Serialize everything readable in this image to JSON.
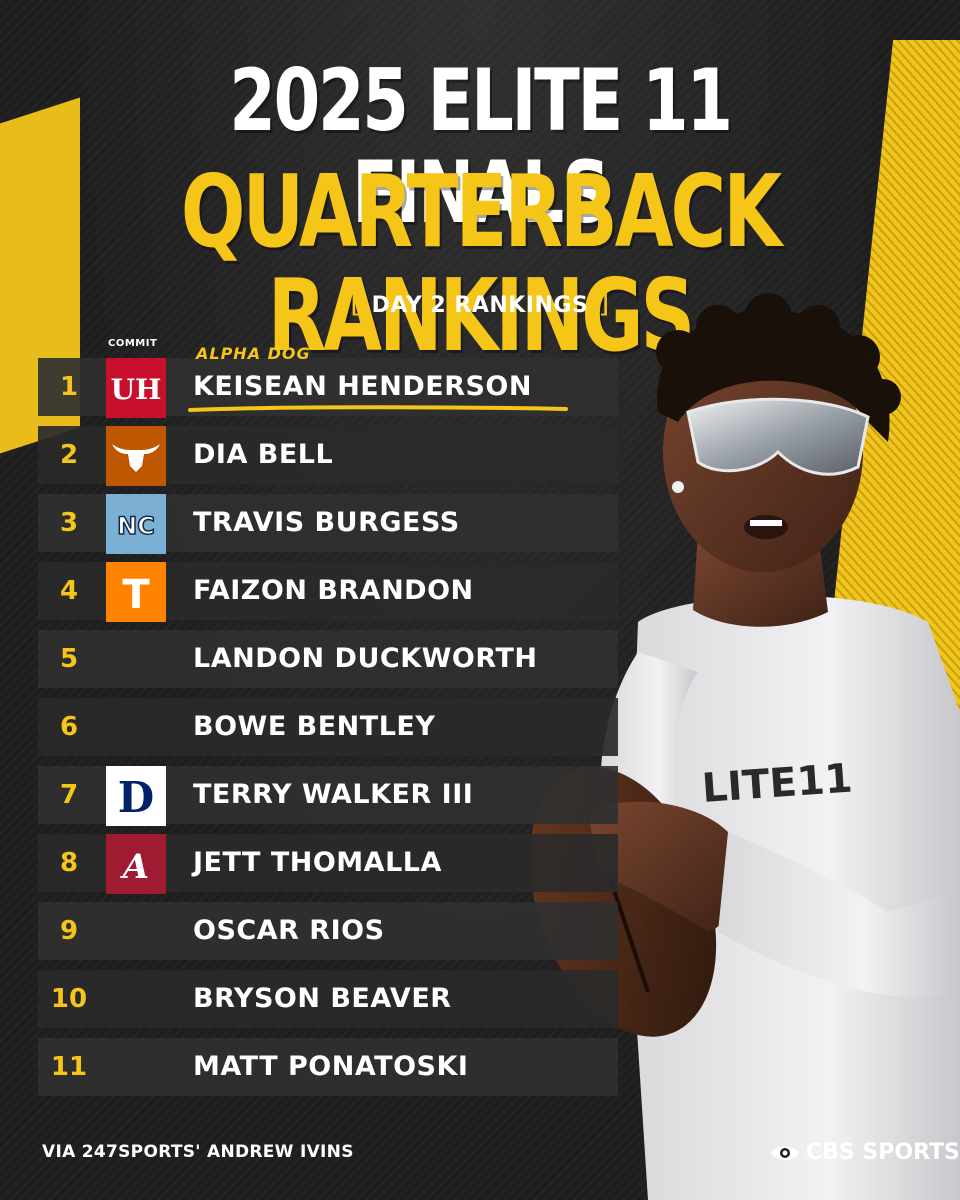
{
  "header": {
    "title_line1": "2025 ELITE 11 FINALS",
    "title_line2": "QUARTERBACK RANKINGS",
    "subtitle": "DAY 2 RANKINGS",
    "bracket_open": "[",
    "bracket_close": "]"
  },
  "table": {
    "commit_label": "COMMIT",
    "highlight_tag": "ALPHA DOG",
    "rows": [
      {
        "rank": "1",
        "name": "KEISEAN HENDERSON",
        "logo": "houston-logo"
      },
      {
        "rank": "2",
        "name": "DIA BELL",
        "logo": "texas-longhorn-logo"
      },
      {
        "rank": "3",
        "name": "TRAVIS BURGESS",
        "logo": "unc-logo"
      },
      {
        "rank": "4",
        "name": "FAIZON BRANDON",
        "logo": "tennessee-logo"
      },
      {
        "rank": "5",
        "name": "LANDON DUCKWORTH",
        "logo": ""
      },
      {
        "rank": "6",
        "name": "BOWE BENTLEY",
        "logo": ""
      },
      {
        "rank": "7",
        "name": "TERRY WALKER III",
        "logo": "duke-logo"
      },
      {
        "rank": "8",
        "name": "JETT THOMALLA",
        "logo": "alabama-logo"
      },
      {
        "rank": "9",
        "name": "OSCAR RIOS",
        "logo": ""
      },
      {
        "rank": "10",
        "name": "BRYSON BEAVER",
        "logo": ""
      },
      {
        "rank": "11",
        "name": "MATT PONATOSKI",
        "logo": ""
      }
    ]
  },
  "logos": {
    "houston": "UH",
    "unc": "NC",
    "tennessee": "T",
    "duke": "D",
    "alabama": "A"
  },
  "footer": {
    "credit": "VIA 247SPORTS' ANDREW IVINS",
    "brand": "CBS SPORTS"
  },
  "colors": {
    "accent_yellow": "#f5c518",
    "background": "#1e1e1e",
    "row": "#303030"
  }
}
